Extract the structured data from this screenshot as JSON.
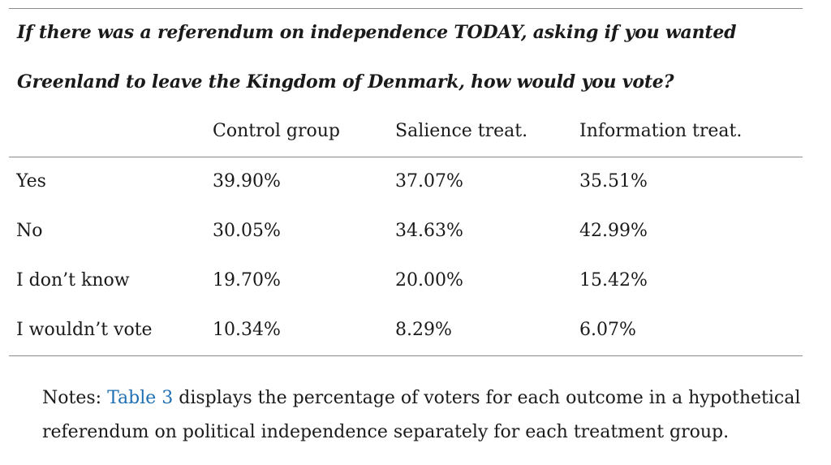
{
  "table": {
    "title_line1": "If there was a referendum on independence TODAY, asking if you wanted",
    "title_line2": "Greenland to leave the Kingdom of Denmark, how would you vote?",
    "columns": [
      "",
      "Control group",
      "Salience treat.",
      "Information treat."
    ],
    "rows": [
      {
        "label": "Yes",
        "values": [
          "39.90%",
          "37.07%",
          "35.51%"
        ]
      },
      {
        "label": "No",
        "values": [
          "30.05%",
          "34.63%",
          "42.99%"
        ]
      },
      {
        "label": "I don’t know",
        "values": [
          "19.70%",
          "20.00%",
          "15.42%"
        ]
      },
      {
        "label": "I wouldn’t vote",
        "values": [
          "10.34%",
          "8.29%",
          "6.07%"
        ]
      }
    ]
  },
  "notes": {
    "prefix": "Notes: ",
    "link_text": "Table 3",
    "text": " displays the percentage of voters for each outcome in a hypothetical referendum on political independence separately for each treatment group."
  }
}
